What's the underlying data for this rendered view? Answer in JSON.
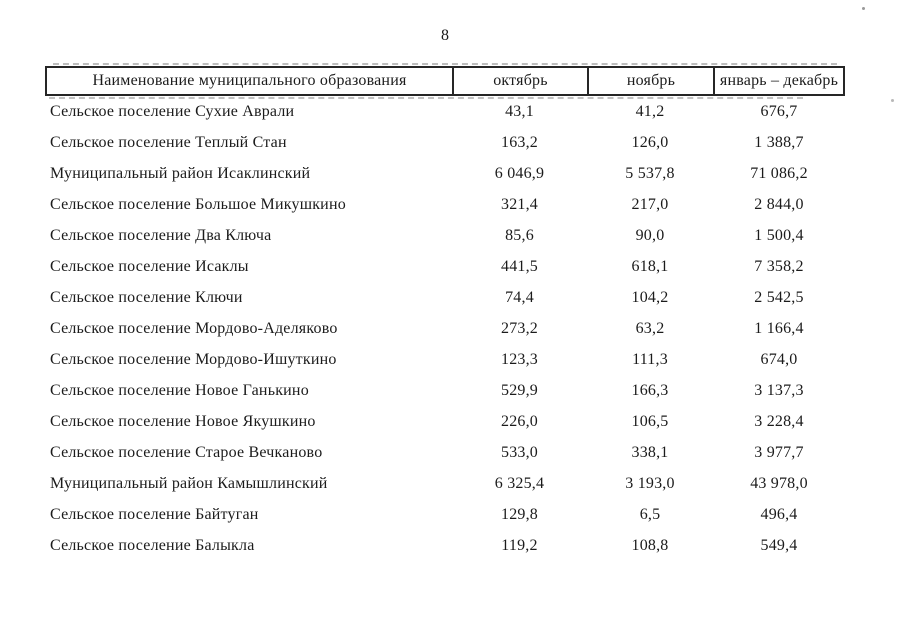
{
  "page": {
    "number": "8"
  },
  "table": {
    "columns": [
      "Наименование муниципального образования",
      "октябрь",
      "ноябрь",
      "январь – декабрь"
    ],
    "rows": [
      [
        "Сельское поселение Сухие Аврали",
        "43,1",
        "41,2",
        "676,7"
      ],
      [
        "Сельское поселение Теплый Стан",
        "163,2",
        "126,0",
        "1 388,7"
      ],
      [
        "Муниципальный район Исаклинский",
        "6 046,9",
        "5 537,8",
        "71 086,2"
      ],
      [
        "Сельское поселение Большое Микушкино",
        "321,4",
        "217,0",
        "2 844,0"
      ],
      [
        "Сельское поселение Два Ключа",
        "85,6",
        "90,0",
        "1 500,4"
      ],
      [
        "Сельское поселение Исаклы",
        "441,5",
        "618,1",
        "7 358,2"
      ],
      [
        "Сельское поселение Ключи",
        "74,4",
        "104,2",
        "2 542,5"
      ],
      [
        "Сельское поселение Мордово-Аделяково",
        "273,2",
        "63,2",
        "1 166,4"
      ],
      [
        "Сельское поселение Мордово-Ишуткино",
        "123,3",
        "111,3",
        "674,0"
      ],
      [
        "Сельское поселение Новое Ганькино",
        "529,9",
        "166,3",
        "3 137,3"
      ],
      [
        "Сельское поселение Новое Якушкино",
        "226,0",
        "106,5",
        "3 228,4"
      ],
      [
        "Сельское поселение Старое Вечканово",
        "533,0",
        "338,1",
        "3 977,7"
      ],
      [
        "Муниципальный район Камышлинский",
        "6 325,4",
        "3 193,0",
        "43 978,0"
      ],
      [
        "Сельское поселение Байтуган",
        "129,8",
        "6,5",
        "496,4"
      ],
      [
        "Сельское поселение Балыкла",
        "119,2",
        "108,8",
        "549,4"
      ]
    ]
  },
  "colors": {
    "background": "#ffffff",
    "text": "#1b1b1b",
    "border": "#262626"
  }
}
